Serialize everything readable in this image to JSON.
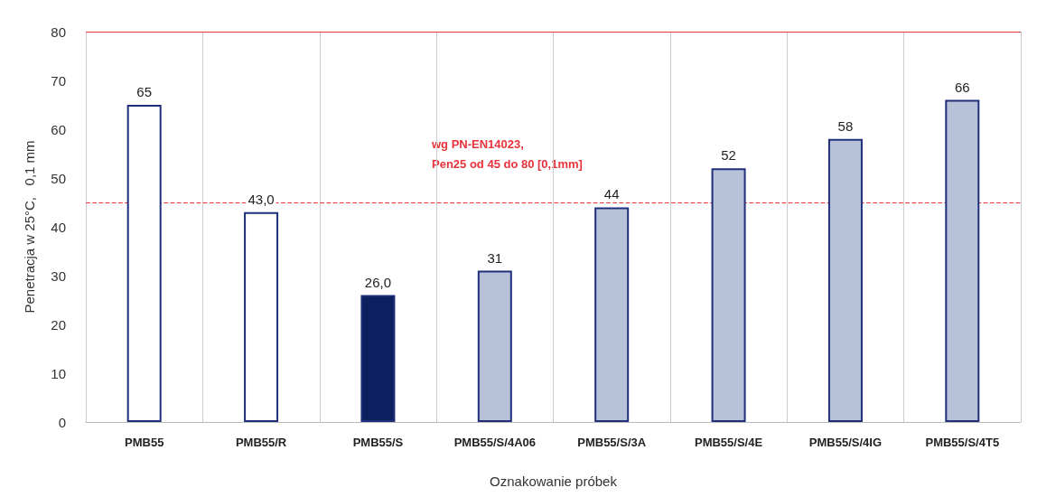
{
  "chart_data": {
    "type": "bar",
    "xlabel": "Oznakowanie próbek",
    "ylabel": "Penetracja w 25°C,   0,1 mm",
    "categories": [
      "PMB55",
      "PMB55/R",
      "PMB55/S",
      "PMB55/S/4A06",
      "PMB55/S/3A",
      "PMB55/S/4E",
      "PMB55/S/4IG",
      "PMB55/S/4T5"
    ],
    "values": [
      65,
      43,
      26,
      31,
      44,
      52,
      58,
      66
    ],
    "value_labels": [
      "65",
      "43,0",
      "26,0",
      "31",
      "44",
      "52",
      "58",
      "66"
    ],
    "colors": [
      "#ffffff",
      "#ffffff",
      "#0c1f5e",
      "#b7c2d8",
      "#b7c2d8",
      "#b7c2d8",
      "#b7c2d8",
      "#b7c2d8"
    ],
    "ylim": [
      0,
      80
    ],
    "yticks": [
      0,
      10,
      20,
      30,
      40,
      50,
      60,
      70,
      80
    ],
    "ref_lines": [
      {
        "axis": "y",
        "value": 80,
        "color": "#e8333a",
        "line_style": "solid"
      },
      {
        "axis": "y",
        "value": 45,
        "color": "#e8333a",
        "line_style": "dashed"
      }
    ],
    "annotations": [
      "wg PN-EN14023,\nPen25 od 45 do 80 [0,1mm]"
    ],
    "grid": "x"
  }
}
